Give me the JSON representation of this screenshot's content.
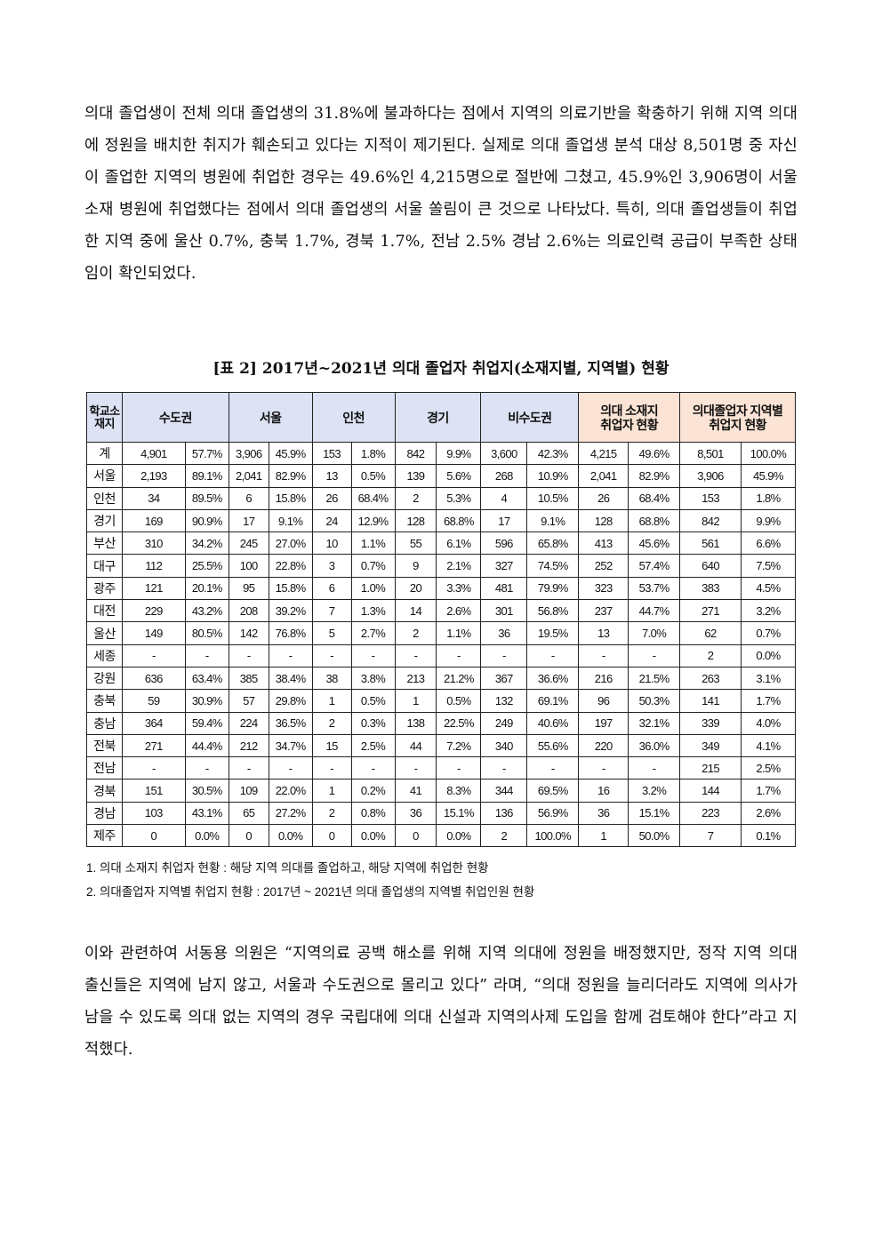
{
  "paragraph1": "의대 졸업생이 전체 의대 졸업생의 31.8%에 불과하다는 점에서 지역의 의료기반을 확충하기 위해 지역 의대에 정원을 배치한 취지가 훼손되고 있다는 지적이 제기된다. 실제로 의대 졸업생 분석 대상 8,501명 중 자신이 졸업한 지역의 병원에 취업한 경우는 49.6%인 4,215명으로 절반에 그쳤고, 45.9%인 3,906명이 서울 소재 병원에 취업했다는 점에서 의대 졸업생의 서울 쏠림이 큰 것으로 나타났다. 특히, 의대 졸업생들이 취업한 지역 중에 울산 0.7%, 충북 1.7%, 경북 1.7%, 전남 2.5% 경남 2.6%는 의료인력 공급이 부족한 상태임이 확인되었다.",
  "table_title": "[표 2] 2017년~2021년 의대 졸업자 취업지(소재지별, 지역별) 현황",
  "headers": [
    "학교소재지",
    "수도권",
    "서울",
    "인천",
    "경기",
    "비수도권",
    "의대 소재지 취업자 현황",
    "의대졸업자 지역별 취업지 현황"
  ],
  "header_colors": {
    "blue": "#dde3f5",
    "peach": "#fbe4d5"
  },
  "rows": [
    [
      "계",
      "4,901",
      "57.7%",
      "3,906",
      "45.9%",
      "153",
      "1.8%",
      "842",
      "9.9%",
      "3,600",
      "42.3%",
      "4,215",
      "49.6%",
      "8,501",
      "100.0%"
    ],
    [
      "서울",
      "2,193",
      "89.1%",
      "2,041",
      "82.9%",
      "13",
      "0.5%",
      "139",
      "5.6%",
      "268",
      "10.9%",
      "2,041",
      "82.9%",
      "3,906",
      "45.9%"
    ],
    [
      "인천",
      "34",
      "89.5%",
      "6",
      "15.8%",
      "26",
      "68.4%",
      "2",
      "5.3%",
      "4",
      "10.5%",
      "26",
      "68.4%",
      "153",
      "1.8%"
    ],
    [
      "경기",
      "169",
      "90.9%",
      "17",
      "9.1%",
      "24",
      "12.9%",
      "128",
      "68.8%",
      "17",
      "9.1%",
      "128",
      "68.8%",
      "842",
      "9.9%"
    ],
    [
      "부산",
      "310",
      "34.2%",
      "245",
      "27.0%",
      "10",
      "1.1%",
      "55",
      "6.1%",
      "596",
      "65.8%",
      "413",
      "45.6%",
      "561",
      "6.6%"
    ],
    [
      "대구",
      "112",
      "25.5%",
      "100",
      "22.8%",
      "3",
      "0.7%",
      "9",
      "2.1%",
      "327",
      "74.5%",
      "252",
      "57.4%",
      "640",
      "7.5%"
    ],
    [
      "광주",
      "121",
      "20.1%",
      "95",
      "15.8%",
      "6",
      "1.0%",
      "20",
      "3.3%",
      "481",
      "79.9%",
      "323",
      "53.7%",
      "383",
      "4.5%"
    ],
    [
      "대전",
      "229",
      "43.2%",
      "208",
      "39.2%",
      "7",
      "1.3%",
      "14",
      "2.6%",
      "301",
      "56.8%",
      "237",
      "44.7%",
      "271",
      "3.2%"
    ],
    [
      "울산",
      "149",
      "80.5%",
      "142",
      "76.8%",
      "5",
      "2.7%",
      "2",
      "1.1%",
      "36",
      "19.5%",
      "13",
      "7.0%",
      "62",
      "0.7%"
    ],
    [
      "세종",
      "-",
      "-",
      "-",
      "-",
      "-",
      "-",
      "-",
      "-",
      "-",
      "-",
      "-",
      "-",
      "2",
      "0.0%"
    ],
    [
      "강원",
      "636",
      "63.4%",
      "385",
      "38.4%",
      "38",
      "3.8%",
      "213",
      "21.2%",
      "367",
      "36.6%",
      "216",
      "21.5%",
      "263",
      "3.1%"
    ],
    [
      "충북",
      "59",
      "30.9%",
      "57",
      "29.8%",
      "1",
      "0.5%",
      "1",
      "0.5%",
      "132",
      "69.1%",
      "96",
      "50.3%",
      "141",
      "1.7%"
    ],
    [
      "충남",
      "364",
      "59.4%",
      "224",
      "36.5%",
      "2",
      "0.3%",
      "138",
      "22.5%",
      "249",
      "40.6%",
      "197",
      "32.1%",
      "339",
      "4.0%"
    ],
    [
      "전북",
      "271",
      "44.4%",
      "212",
      "34.7%",
      "15",
      "2.5%",
      "44",
      "7.2%",
      "340",
      "55.6%",
      "220",
      "36.0%",
      "349",
      "4.1%"
    ],
    [
      "전남",
      "-",
      "-",
      "-",
      "-",
      "-",
      "-",
      "-",
      "-",
      "-",
      "-",
      "-",
      "-",
      "215",
      "2.5%"
    ],
    [
      "경북",
      "151",
      "30.5%",
      "109",
      "22.0%",
      "1",
      "0.2%",
      "41",
      "8.3%",
      "344",
      "69.5%",
      "16",
      "3.2%",
      "144",
      "1.7%"
    ],
    [
      "경남",
      "103",
      "43.1%",
      "65",
      "27.2%",
      "2",
      "0.8%",
      "36",
      "15.1%",
      "136",
      "56.9%",
      "36",
      "15.1%",
      "223",
      "2.6%"
    ],
    [
      "제주",
      "0",
      "0.0%",
      "0",
      "0.0%",
      "0",
      "0.0%",
      "0",
      "0.0%",
      "2",
      "100.0%",
      "1",
      "50.0%",
      "7",
      "0.1%"
    ]
  ],
  "notes": [
    "1. 의대 소재지 취업자 현황 : 해당 지역 의대를 졸업하고, 해당 지역에 취업한 현황",
    "2. 의대졸업자 지역별 취업지 현황 : 2017년 ~ 2021년 의대 졸업생의 지역별 취업인원 현황"
  ],
  "paragraph2": "이와 관련하여 서동용 의원은 “지역의료 공백 해소를 위해 지역 의대에 정원을 배정했지만, 정작 지역 의대 출신들은 지역에 남지 않고, 서울과 수도권으로 몰리고 있다” 라며, “의대 정원을 늘리더라도 지역에 의사가 남을 수 있도록 의대 없는 지역의 경우 국립대에 의대 신설과 지역의사제 도입을 함께 검토해야 한다”라고 지적했다."
}
